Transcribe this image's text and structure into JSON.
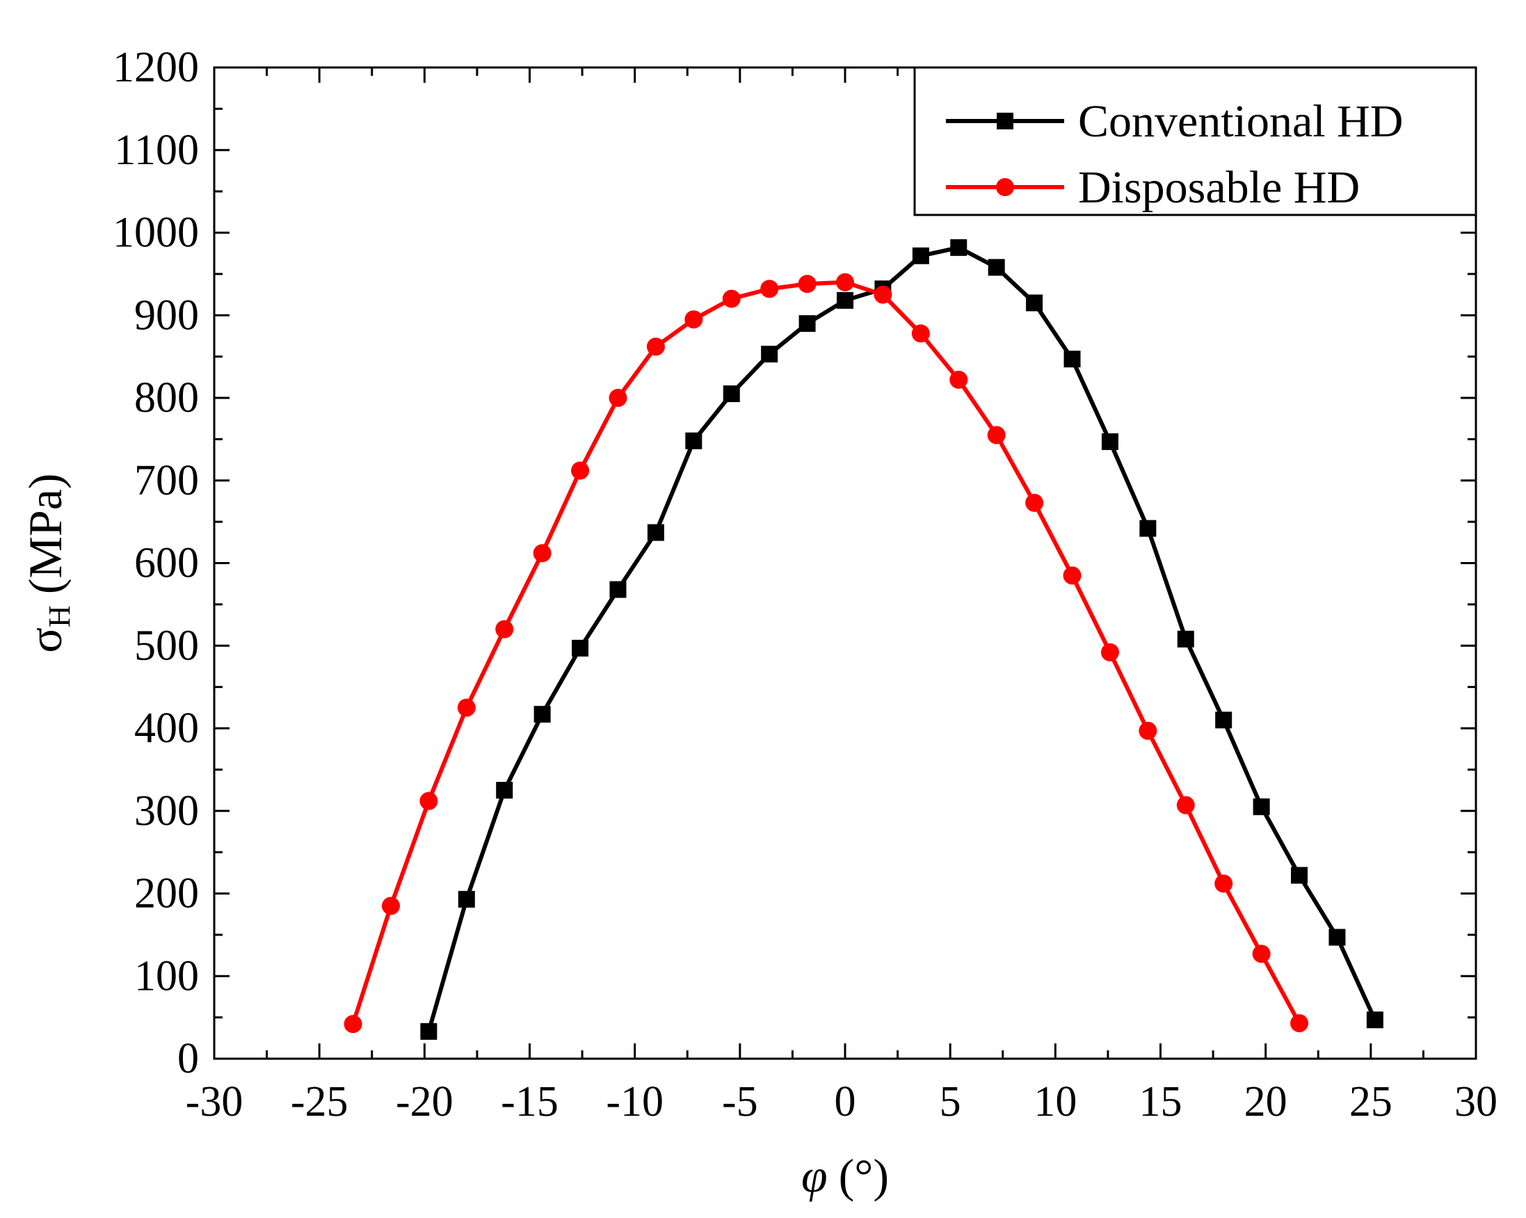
{
  "chart_data": {
    "type": "line",
    "title": "",
    "xlabel": "φ (°)",
    "xlabel_symbol": "φ",
    "xlabel_unit": "(°)",
    "ylabel": "σH (MPa)",
    "ylabel_symbol": "σ",
    "ylabel_subscript": "H",
    "ylabel_unit": "(MPa)",
    "xlim": [
      -30,
      30
    ],
    "ylim": [
      0,
      1200
    ],
    "xticks": [
      -30,
      -25,
      -20,
      -15,
      -10,
      -5,
      0,
      5,
      10,
      15,
      20,
      25,
      30
    ],
    "yticks": [
      0,
      100,
      200,
      300,
      400,
      500,
      600,
      700,
      800,
      900,
      1000,
      1100,
      1200
    ],
    "grid": false,
    "legend_position": "top-right",
    "series": [
      {
        "name": "Conventional HD",
        "color": "#000000",
        "marker": "square",
        "x": [
          -19.8,
          -18.0,
          -16.2,
          -14.4,
          -12.6,
          -10.8,
          -9.0,
          -7.2,
          -5.4,
          -3.6,
          -1.8,
          0.0,
          1.8,
          3.6,
          5.4,
          7.2,
          9.0,
          10.8,
          12.6,
          14.4,
          16.2,
          18.0,
          19.8,
          21.6,
          23.4,
          25.2
        ],
        "y": [
          33,
          193,
          325,
          417,
          497,
          568,
          637,
          748,
          805,
          853,
          890,
          918,
          932,
          972,
          982,
          958,
          915,
          847,
          747,
          642,
          508,
          410,
          305,
          222,
          147,
          47
        ]
      },
      {
        "name": "Disposable HD",
        "color": "#ff0000",
        "marker": "circle",
        "x": [
          -23.4,
          -21.6,
          -19.8,
          -18.0,
          -16.2,
          -14.4,
          -12.6,
          -10.8,
          -9.0,
          -7.2,
          -5.4,
          -3.6,
          -1.8,
          0.0,
          1.8,
          3.6,
          5.4,
          7.2,
          9.0,
          10.8,
          12.6,
          14.4,
          16.2,
          18.0,
          19.8,
          21.6
        ],
        "y": [
          42,
          185,
          312,
          425,
          520,
          612,
          712,
          800,
          862,
          895,
          920,
          932,
          938,
          940,
          925,
          878,
          822,
          755,
          673,
          585,
          492,
          397,
          307,
          212,
          127,
          43
        ]
      }
    ]
  }
}
